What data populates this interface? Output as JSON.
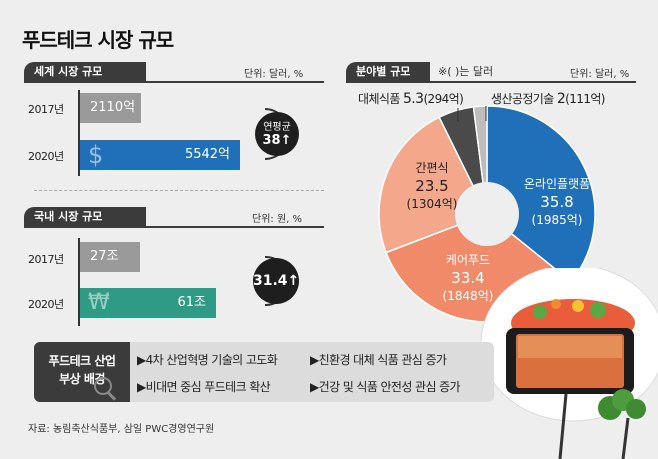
{
  "title": "푸드테크 시장 규모",
  "world": {
    "header": "세계 시장 규모",
    "unit": "단위: 달러, %",
    "rows": [
      {
        "year": "2017년",
        "label": "2110억",
        "value": 2110
      },
      {
        "year": "2020년",
        "label": "5542억",
        "value": 5542
      }
    ],
    "growth_title": "연평균",
    "growth_value": "38↑",
    "currency_icon": "dollar-sign-icon"
  },
  "domestic": {
    "header": "국내 시장 규모",
    "unit": "단위: 원, %",
    "rows": [
      {
        "year": "2017년",
        "label": "27조",
        "value": 27
      },
      {
        "year": "2020년",
        "label": "61조",
        "value": 61
      }
    ],
    "growth_value": "31.4↑",
    "currency_icon": "won-sign-icon"
  },
  "field": {
    "header": "분야별 규모",
    "note": "※( )는 달러",
    "unit": "단위: 달러, %"
  },
  "background": {
    "label_line1": "푸드테크 산업",
    "label_line2": "부상 배경",
    "items": [
      "▶4차 산업혁명 기술의 고도화",
      "▶친환경 대체 식품 관심 증가",
      "▶비대면 중심 푸드테크 확산",
      "▶건강 및 식품 안전성 관심 증가"
    ]
  },
  "source": "자료: 농림축산식품부, 삼일 PWC경영연구원",
  "colors": {
    "world_bar_2017": "#9a9a9a",
    "world_bar_2020": "#1f70b8",
    "dom_bar_2017": "#9a9a9a",
    "dom_bar_2020": "#2f9b86",
    "online": "#1f70b8",
    "delivery": "#f08a68",
    "convenience": "#f3a88c",
    "alt": "#4a4a4a",
    "prod": "#bdbdbd"
  },
  "chart_data": [
    {
      "type": "bar",
      "title": "세계 시장 규모",
      "categories": [
        "2017년",
        "2020년"
      ],
      "values": [
        2110,
        5542
      ],
      "data_labels": [
        "2110억",
        "5542억"
      ],
      "annotation": "연평균 38↑"
    },
    {
      "type": "bar",
      "title": "국내 시장 규모",
      "categories": [
        "2017년",
        "2020년"
      ],
      "values": [
        27,
        61
      ],
      "data_labels": [
        "27조",
        "61조"
      ],
      "annotation": "31.4↑"
    },
    {
      "type": "pie",
      "title": "분야별 규모",
      "categories": [
        "온라인플랫폼",
        "케어푸드",
        "간편식",
        "대체식품",
        "생산공정기술"
      ],
      "values": [
        35.8,
        33.4,
        23.5,
        5.3,
        2
      ],
      "value_labels": [
        "35.8",
        "33.4",
        "23.5",
        "5.3",
        "2"
      ],
      "secondary_labels": [
        "(1985억)",
        "(1848억)",
        "(1304억)",
        "(294억)",
        "(111억)"
      ]
    }
  ]
}
